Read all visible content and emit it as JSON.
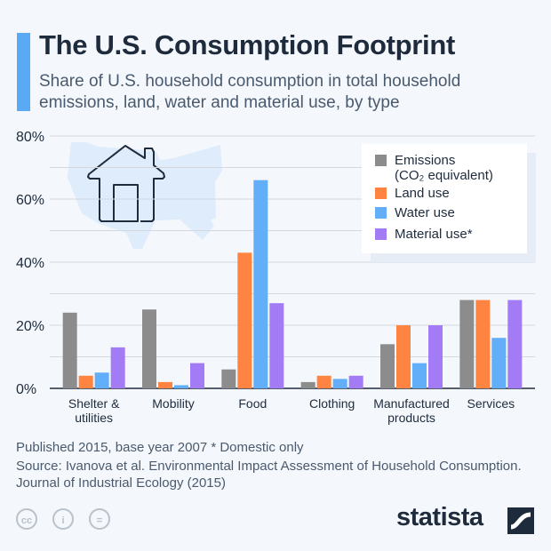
{
  "header": {
    "title": "The U.S. Consumption Footprint",
    "subtitle": "Share of U.S. household consumption in total household emissions, land, water and material use, by type"
  },
  "chart_data": {
    "type": "bar",
    "categories": [
      "Shelter & utilities",
      "Mobility",
      "Food",
      "Clothing",
      "Manufactured products",
      "Services"
    ],
    "category_lines": [
      [
        "Shelter &",
        "utilities"
      ],
      [
        "Mobility"
      ],
      [
        "Food"
      ],
      [
        "Clothing"
      ],
      [
        "Manufactured",
        "products"
      ],
      [
        "Services"
      ]
    ],
    "series": [
      {
        "name": "Emissions (CO₂ equivalent)",
        "color": "#8c8c8c",
        "values": [
          24,
          25,
          6,
          2,
          14,
          28
        ]
      },
      {
        "name": "Land use",
        "color": "#ff8442",
        "values": [
          4,
          2,
          43,
          4,
          20,
          28
        ]
      },
      {
        "name": "Water use",
        "color": "#62aef8",
        "values": [
          5,
          1,
          66,
          3,
          8,
          16
        ]
      },
      {
        "name": "Material use*",
        "color": "#a27bf5",
        "values": [
          13,
          8,
          27,
          4,
          20,
          28
        ]
      }
    ],
    "ylim": [
      0,
      80
    ],
    "yticks": [
      "0%",
      "20%",
      "40%",
      "60%",
      "80%"
    ],
    "grid": true,
    "legend_position": "top-right"
  },
  "legend": {
    "line1": "Emissions",
    "line2": "(CO₂ equivalent)",
    "land": "Land use",
    "water": "Water use",
    "material": "Material use*"
  },
  "footer": {
    "published": "Published 2015, base year 2007    * Domestic only",
    "source": "Source: Ivanova et al. Environmental Impact Assessment of Household Consumption. Journal of Industrial Ecology (2015)",
    "brand": "statista"
  }
}
